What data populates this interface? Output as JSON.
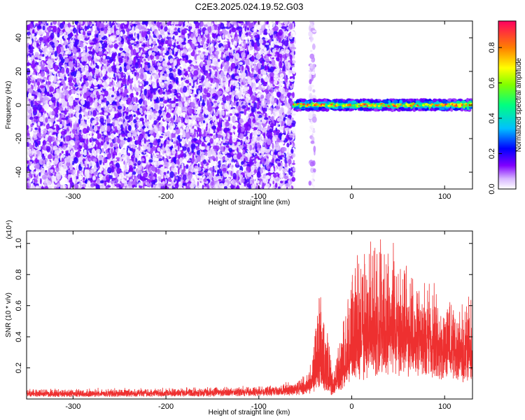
{
  "title": "C2E3.2025.024.19.52.G03",
  "chart_data": [
    {
      "type": "heatmap",
      "xlabel": "Height of straight line (km)",
      "ylabel": "Frequency (Hz)",
      "xlim": [
        -350,
        130
      ],
      "ylim": [
        -50,
        50
      ],
      "x_ticks": [
        -300,
        -200,
        -100,
        0,
        100
      ],
      "x_tick_labels": [
        "-300",
        "-200",
        "-100",
        "0",
        "100"
      ],
      "y_ticks": [
        -40,
        -20,
        0,
        20,
        40
      ],
      "y_tick_labels": [
        "-40",
        "-20",
        "0",
        "20",
        "40"
      ],
      "colorbar": {
        "label": "Normalized spectral amplitude",
        "range": [
          0.0,
          0.95
        ],
        "ticks": [
          0.0,
          0.2,
          0.4,
          0.6,
          0.8
        ],
        "tick_labels": [
          "0.0",
          "0.2",
          "0.4",
          "0.6",
          "0.8"
        ],
        "colors": [
          "#ffffff",
          "#c8a0ff",
          "#8000ff",
          "#0000ff",
          "#00c0ff",
          "#00ff80",
          "#80ff00",
          "#ffff00",
          "#ff8000",
          "#ff0040"
        ]
      },
      "regions": [
        {
          "x_range": [
            -350,
            -62
          ],
          "f_range": [
            -50,
            50
          ],
          "amplitude_range": [
            0.0,
            0.2
          ],
          "description_color": "#8030e0"
        },
        {
          "x_range": [
            -45,
            -40
          ],
          "f_range": [
            -50,
            50
          ],
          "amplitude_range": [
            0.0,
            0.1
          ],
          "description_color": "#c8a8f0"
        },
        {
          "x_range": [
            -62,
            130
          ],
          "f_range": [
            -3,
            3
          ],
          "amplitude_range": [
            0.1,
            0.95
          ],
          "description_color": "#00ff80"
        }
      ]
    },
    {
      "type": "line",
      "xlabel": "Height of straight line (km)",
      "ylabel": "SNR (10 * v/v)",
      "y_scale_label": "(x10⁴)",
      "xlim": [
        -350,
        130
      ],
      "ylim": [
        0,
        1.08
      ],
      "x_ticks": [
        -300,
        -200,
        -100,
        0,
        100
      ],
      "x_tick_labels": [
        "-300",
        "-200",
        "-100",
        "0",
        "100"
      ],
      "y_ticks": [
        0.2,
        0.4,
        0.6,
        0.8,
        1.0
      ],
      "y_tick_labels": [
        "0.2",
        "0.4",
        "0.6",
        "0.8",
        "1.0"
      ],
      "color": "#ee3030",
      "series_envelope": [
        {
          "x": -350,
          "base": 0.03,
          "noise": 0.03
        },
        {
          "x": -200,
          "base": 0.035,
          "noise": 0.03
        },
        {
          "x": -100,
          "base": 0.045,
          "noise": 0.03
        },
        {
          "x": -60,
          "base": 0.06,
          "noise": 0.04
        },
        {
          "x": -45,
          "base": 0.08,
          "noise": 0.1
        },
        {
          "x": -35,
          "base": 0.15,
          "noise": 0.55
        },
        {
          "x": -20,
          "base": 0.05,
          "noise": 0.15
        },
        {
          "x": -5,
          "base": 0.2,
          "noise": 0.45
        },
        {
          "x": 10,
          "base": 0.3,
          "noise": 0.7
        },
        {
          "x": 35,
          "base": 0.35,
          "noise": 0.72
        },
        {
          "x": 60,
          "base": 0.35,
          "noise": 0.55
        },
        {
          "x": 100,
          "base": 0.3,
          "noise": 0.3
        },
        {
          "x": 130,
          "base": 0.25,
          "noise": 0.35
        }
      ]
    }
  ]
}
